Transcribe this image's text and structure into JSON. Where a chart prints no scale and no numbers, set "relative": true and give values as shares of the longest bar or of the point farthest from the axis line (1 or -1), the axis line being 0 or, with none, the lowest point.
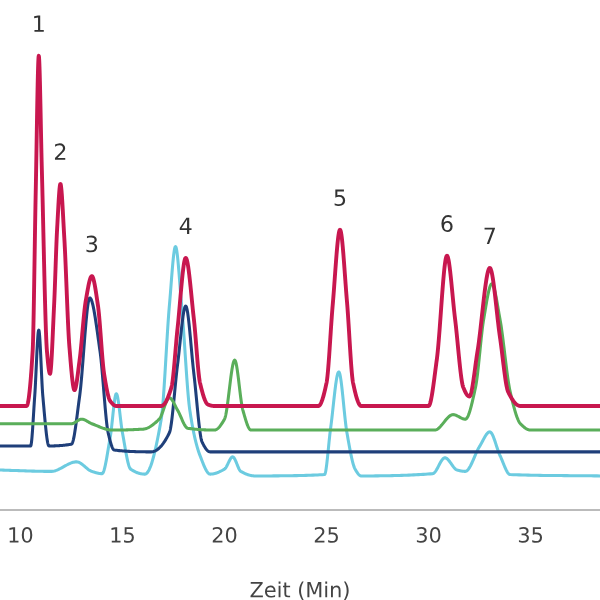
{
  "chart_data": {
    "type": "line",
    "relative": true,
    "xlabel": "Zeit (Min)",
    "xlim": [
      9.0,
      38.4
    ],
    "xticks": [
      10,
      15,
      20,
      25,
      30,
      35
    ],
    "grid": false,
    "legend": false,
    "marker": "none",
    "line_style": "solid",
    "tick_labels": "x",
    "annotations": [
      {
        "text": "1",
        "x": 10.9,
        "y": 1.0
      },
      {
        "text": "2",
        "x": 11.96,
        "y": 0.718
      },
      {
        "text": "3",
        "x": 13.5,
        "y": 0.515
      },
      {
        "text": "4",
        "x": 18.1,
        "y": 0.555
      },
      {
        "text": "5",
        "x": 25.66,
        "y": 0.617
      },
      {
        "text": "6",
        "x": 30.9,
        "y": 0.56
      },
      {
        "text": "7",
        "x": 33.0,
        "y": 0.533
      }
    ],
    "series": [
      {
        "color": "#6ccbe0",
        "x": [
          9,
          11.5,
          12.75,
          13.5,
          14.0,
          14.4,
          14.7,
          15.0,
          15.4,
          16.1,
          16.9,
          17.3,
          17.6,
          17.9,
          18.3,
          18.8,
          19.3,
          20.0,
          20.4,
          20.8,
          21.5,
          24.9,
          25.2,
          25.6,
          26.0,
          26.4,
          26.7,
          30.2,
          30.8,
          31.4,
          31.8,
          32.5,
          33.0,
          33.5,
          34.0,
          38.4
        ],
        "values": [
          0.088,
          0.085,
          0.106,
          0.085,
          0.08,
          0.16,
          0.256,
          0.17,
          0.09,
          0.079,
          0.2,
          0.45,
          0.58,
          0.45,
          0.22,
          0.12,
          0.079,
          0.09,
          0.117,
          0.085,
          0.075,
          0.078,
          0.18,
          0.304,
          0.17,
          0.09,
          0.075,
          0.08,
          0.115,
          0.088,
          0.085,
          0.14,
          0.172,
          0.12,
          0.078,
          0.075
        ]
      },
      {
        "color": "#1f3f7a",
        "x": [
          9,
          10.5,
          10.7,
          10.9,
          11.1,
          11.4,
          12.5,
          12.9,
          13.4,
          13.9,
          14.3,
          14.6,
          16.4,
          17.3,
          17.7,
          18.1,
          18.5,
          18.9,
          19.3,
          38.4
        ],
        "values": [
          0.141,
          0.141,
          0.25,
          0.396,
          0.25,
          0.141,
          0.145,
          0.25,
          0.467,
          0.35,
          0.17,
          0.132,
          0.128,
          0.17,
          0.32,
          0.449,
          0.3,
          0.15,
          0.128,
          0.128
        ]
      },
      {
        "color": "#5aae5a",
        "x": [
          9.0,
          11.0,
          12.5,
          13.0,
          13.5,
          14.5,
          16.0,
          16.8,
          17.3,
          17.7,
          18.2,
          19.5,
          20.0,
          20.5,
          20.9,
          21.3,
          30.3,
          31.2,
          31.8,
          32.3,
          32.7,
          33.1,
          33.5,
          34.0,
          34.5,
          35.0,
          38.4
        ],
        "values": [
          0.19,
          0.19,
          0.19,
          0.2,
          0.19,
          0.176,
          0.178,
          0.2,
          0.247,
          0.22,
          0.18,
          0.176,
          0.2,
          0.33,
          0.22,
          0.176,
          0.176,
          0.21,
          0.2,
          0.27,
          0.42,
          0.498,
          0.42,
          0.26,
          0.19,
          0.176,
          0.176
        ]
      },
      {
        "color": "#c8174f",
        "x": [
          9.0,
          10.3,
          10.6,
          10.75,
          10.9,
          11.05,
          11.3,
          11.45,
          11.65,
          11.8,
          11.96,
          12.15,
          12.4,
          12.65,
          12.9,
          13.2,
          13.5,
          13.8,
          14.1,
          14.4,
          14.7,
          16.9,
          17.4,
          17.7,
          18.1,
          18.5,
          18.8,
          19.2,
          19.5,
          24.6,
          25.0,
          25.3,
          25.66,
          26.0,
          26.3,
          26.7,
          30.0,
          30.4,
          30.9,
          31.3,
          31.7,
          32.0,
          32.4,
          33.0,
          33.5,
          33.9,
          34.5,
          38.4
        ],
        "values": [
          0.229,
          0.229,
          0.35,
          0.7,
          1.0,
          0.75,
          0.35,
          0.3,
          0.45,
          0.62,
          0.718,
          0.6,
          0.36,
          0.264,
          0.33,
          0.46,
          0.515,
          0.45,
          0.3,
          0.24,
          0.229,
          0.229,
          0.27,
          0.4,
          0.555,
          0.42,
          0.28,
          0.232,
          0.229,
          0.229,
          0.28,
          0.45,
          0.617,
          0.46,
          0.28,
          0.229,
          0.229,
          0.33,
          0.56,
          0.42,
          0.27,
          0.25,
          0.35,
          0.533,
          0.38,
          0.26,
          0.229,
          0.229
        ]
      }
    ]
  }
}
